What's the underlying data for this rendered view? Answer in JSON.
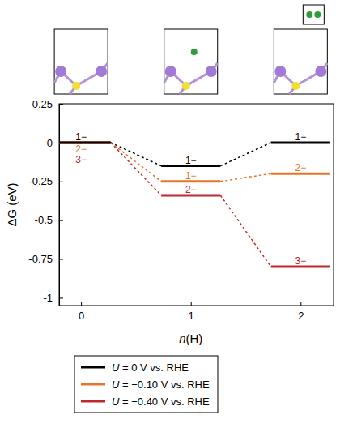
{
  "chart_data": {
    "type": "line",
    "x": [
      0,
      1,
      2
    ],
    "xlabel": "n(H)",
    "ylabel": "ΔG (eV)",
    "xlim": [
      -0.2,
      2.3
    ],
    "ylim": [
      -1.05,
      0.25
    ],
    "xticks": [
      0,
      1,
      2
    ],
    "yticks": [
      0.25,
      0,
      -0.25,
      -0.5,
      -0.75,
      -1
    ],
    "legend": "bottom",
    "line_style": "dashed",
    "series": [
      {
        "name": "U = 0 V vs. RHE",
        "color": "#000000",
        "values": [
          0,
          -0.15,
          0
        ],
        "labels": [
          "1−",
          "1−",
          "1−"
        ]
      },
      {
        "name": "U = −0.10 V vs. RHE",
        "color": "#e8732a",
        "values": [
          0,
          -0.25,
          -0.2
        ],
        "labels": [
          "2−",
          "1−",
          "2−"
        ]
      },
      {
        "name": "U = −0.40 V vs. RHE",
        "color": "#c0282d",
        "values": [
          0,
          -0.34,
          -0.8
        ],
        "labels": [
          "3−",
          "2−",
          "3−"
        ]
      }
    ]
  }
}
